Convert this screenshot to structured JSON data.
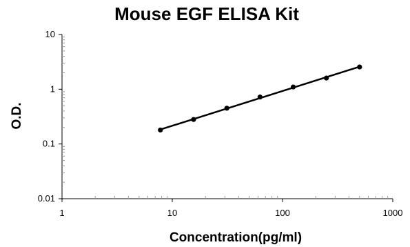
{
  "chart_data": {
    "type": "line",
    "title": "Mouse EGF ELISA Kit",
    "xlabel": "Concentration(pg/ml)",
    "ylabel": "O.D.",
    "x_scale": "log",
    "y_scale": "log",
    "xlim": [
      1,
      1000
    ],
    "ylim": [
      0.01,
      10
    ],
    "x_ticks": [
      "1",
      "10",
      "100",
      "1000"
    ],
    "y_ticks": [
      "0.01",
      "0.1",
      "1",
      "10"
    ],
    "grid": false,
    "legend": "none",
    "series": [
      {
        "x": [
          7.8,
          15.6,
          31.25,
          62.5,
          125,
          250,
          500
        ],
        "y": [
          0.18,
          0.28,
          0.45,
          0.72,
          1.1,
          1.6,
          2.55
        ],
        "markers": true,
        "trendline": true
      }
    ],
    "colors": {
      "line": "#000000",
      "marker": "#000000",
      "axis": "#000000",
      "minor_tick": "#999999"
    }
  }
}
